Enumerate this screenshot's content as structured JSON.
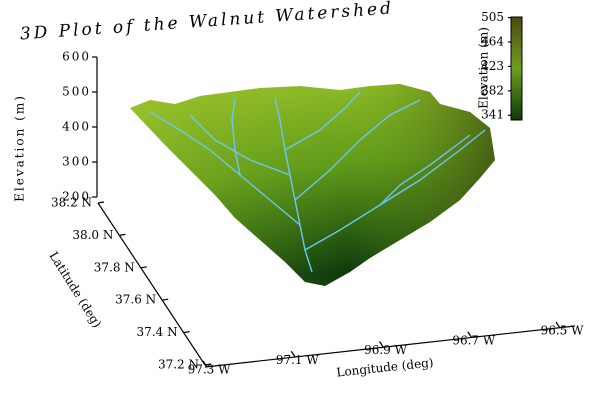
{
  "chart_data": {
    "type": "surface3d",
    "title": "3D Plot of the Walnut Watershed",
    "zlabel": "Elevation (m)",
    "zlim": [
      200,
      600
    ],
    "zticks": [
      200,
      300,
      400,
      500,
      600
    ],
    "ylabel": "Latitude (deg)",
    "ylim": [
      37.2,
      38.2
    ],
    "yticks": [
      {
        "value": 38.2,
        "label": "38.2 N"
      },
      {
        "value": 38.0,
        "label": "38.0 N"
      },
      {
        "value": 37.8,
        "label": "37.8 N"
      },
      {
        "value": 37.6,
        "label": "37.6 N"
      },
      {
        "value": 37.4,
        "label": "37.4 N"
      },
      {
        "value": 37.2,
        "label": "37.2 N"
      }
    ],
    "xlabel": "Longitude (deg)",
    "xlim": [
      97.3,
      96.5
    ],
    "xticks": [
      {
        "value": 97.3,
        "label": "97.3 W"
      },
      {
        "value": 97.1,
        "label": "97.1 W"
      },
      {
        "value": 96.9,
        "label": "96.9 W"
      },
      {
        "value": 96.7,
        "label": "96.7 W"
      },
      {
        "value": 96.5,
        "label": "96.5 W"
      }
    ],
    "colorbar": {
      "label": "Elevation (m)",
      "lim": [
        333,
        506
      ],
      "ticks": [
        341,
        382,
        423,
        464,
        505
      ],
      "colors": [
        "#0d3a0a",
        "#6f9e1e",
        "#4a4a10"
      ]
    }
  }
}
